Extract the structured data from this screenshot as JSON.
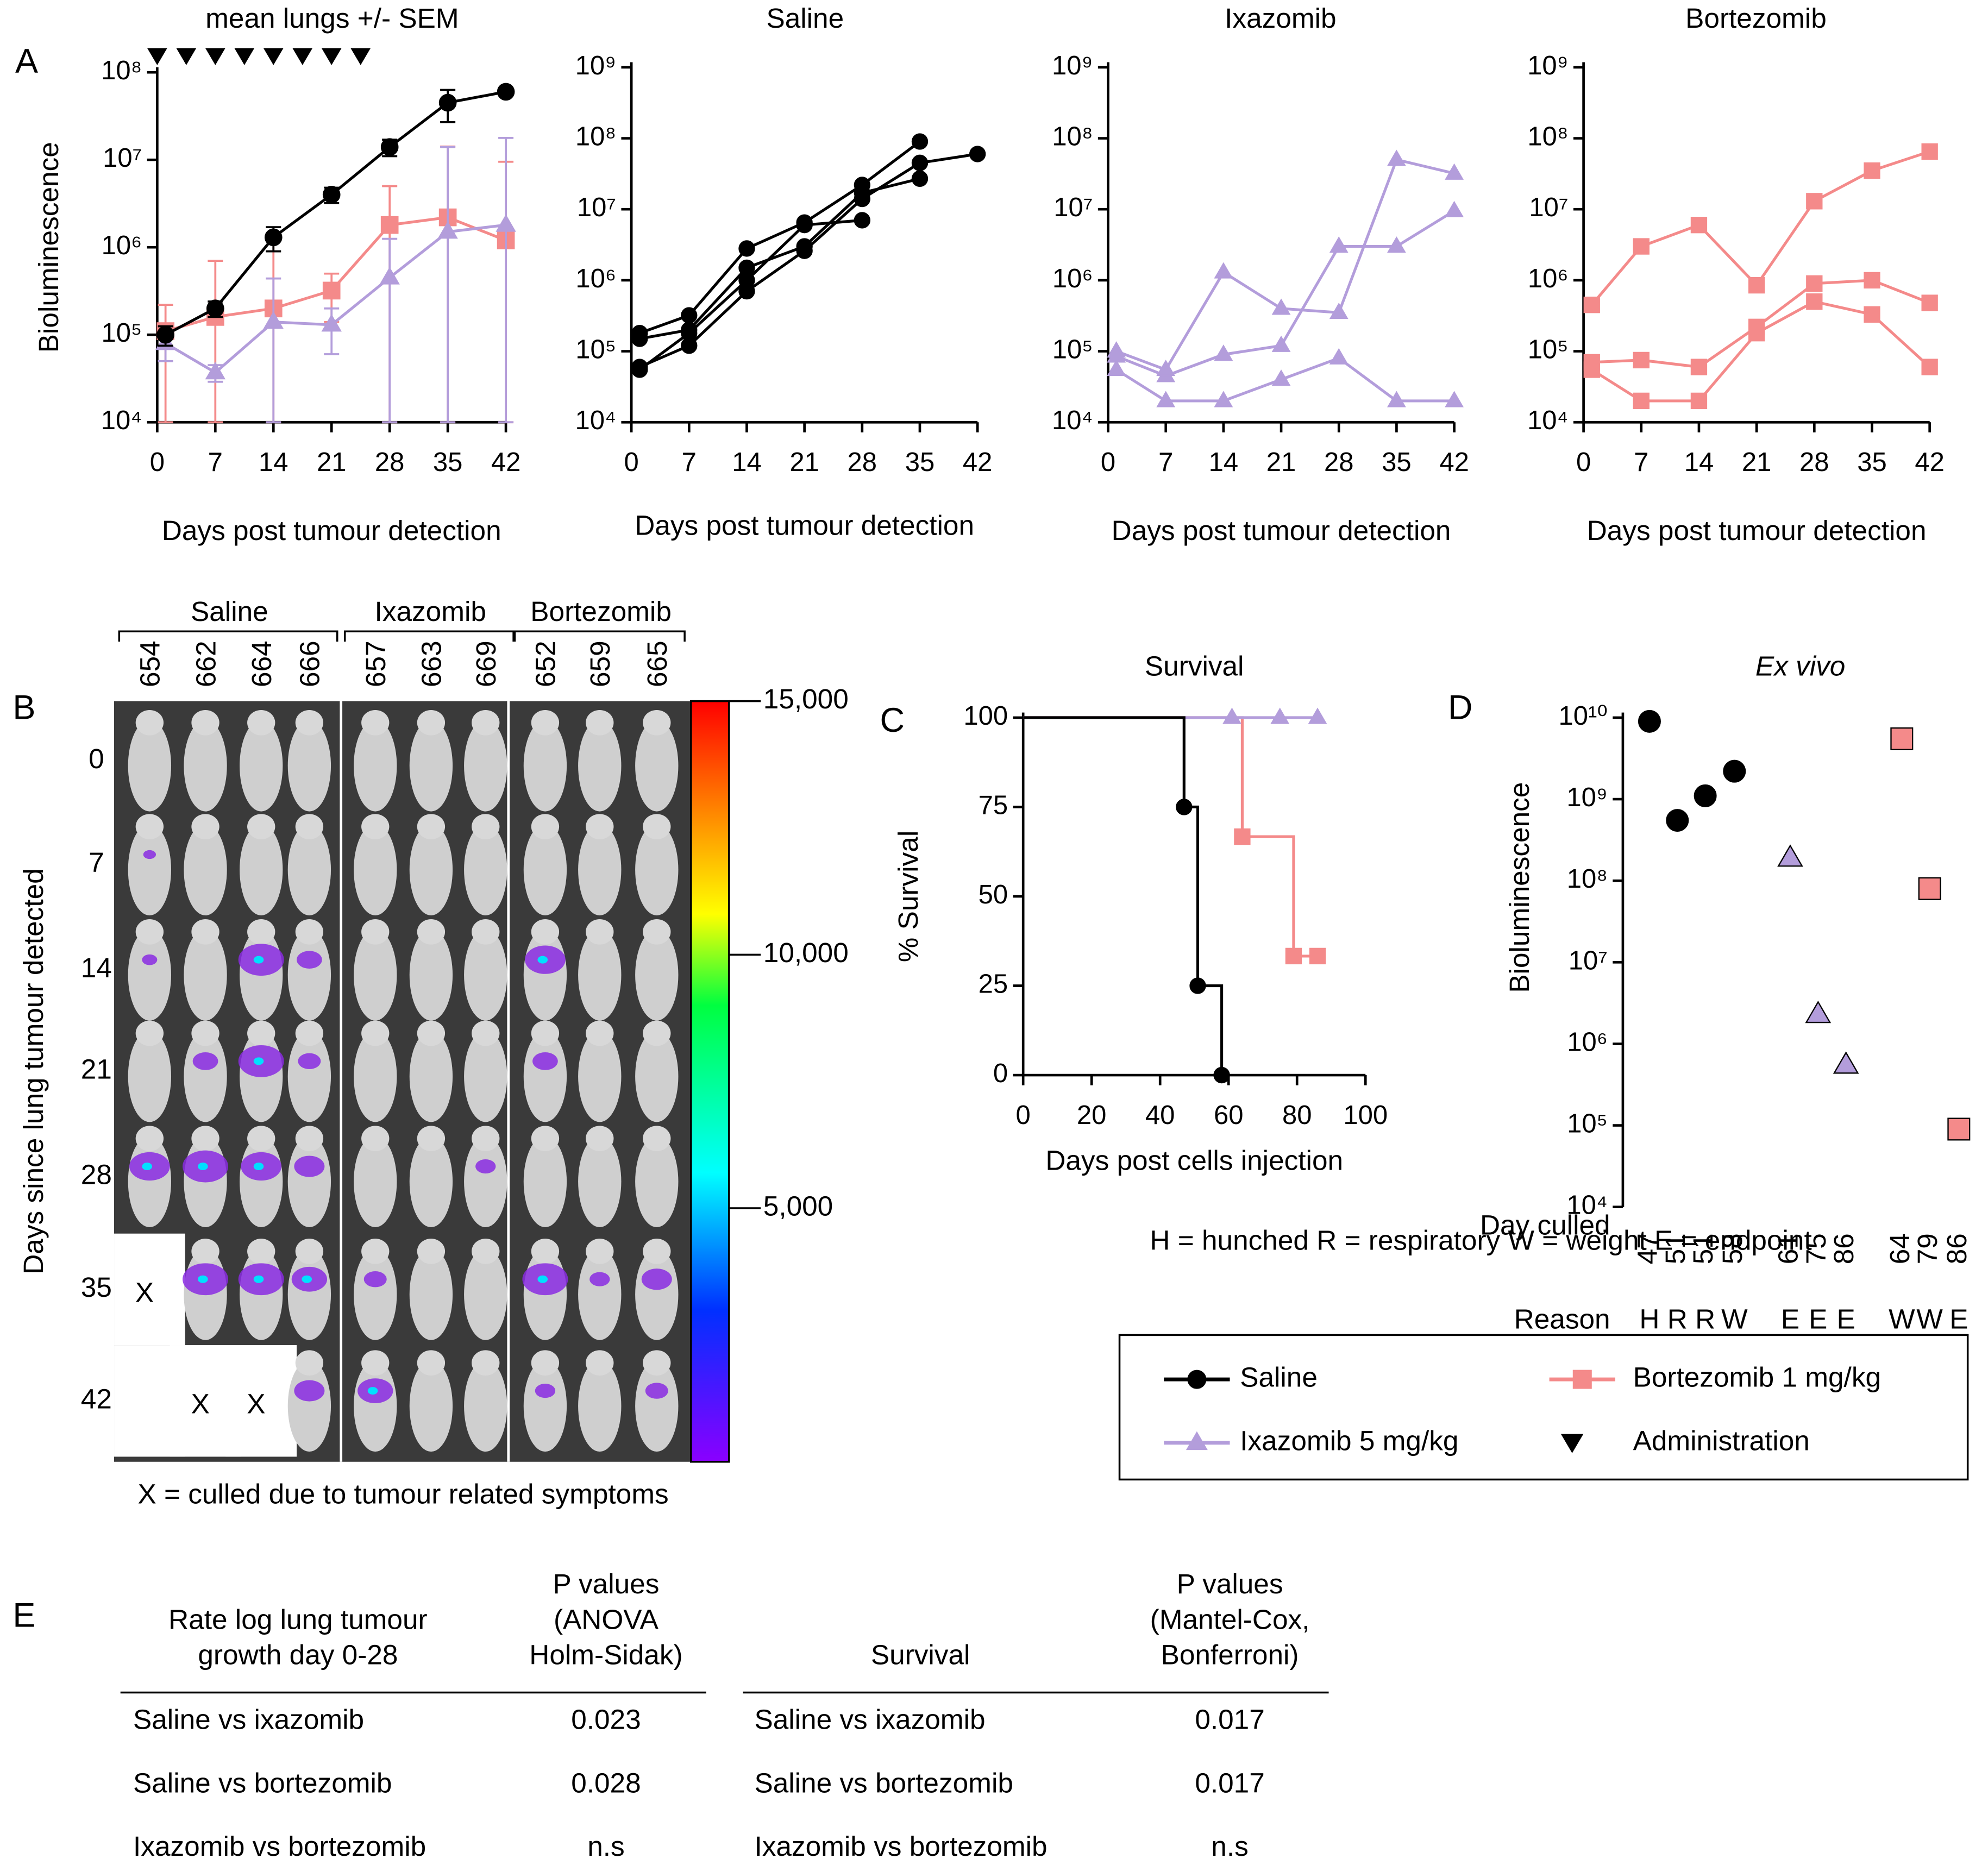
{
  "panel_labels": [
    "A",
    "B",
    "C",
    "D",
    "E"
  ],
  "chart_data": [
    {
      "type": "line",
      "title": "mean lungs +/- SEM",
      "ylabel": "Bioluminescence",
      "xlabel": "Days post tumour detection",
      "log_y": true,
      "x": [
        1,
        7,
        14,
        21,
        28,
        35,
        42
      ],
      "xlim": [
        0,
        42
      ],
      "xticks": [
        0,
        7,
        14,
        21,
        28,
        35,
        42
      ],
      "ylim": [
        10000,
        100000000
      ],
      "yticks": [
        {
          "value": 10000,
          "label": "10⁴"
        },
        {
          "value": 100000,
          "label": "10⁵"
        },
        {
          "value": 1000000,
          "label": "10⁶"
        },
        {
          "value": 10000000,
          "label": "10⁷"
        },
        {
          "value": 100000000,
          "label": "10⁸"
        }
      ],
      "series": [
        {
          "name": "Saline",
          "color": "#000000",
          "marker": "circle",
          "values": [
            100000,
            200000,
            1300000,
            4000000,
            14000000,
            45000000,
            60000000
          ],
          "errors": [
            25000,
            40000,
            400000,
            800000,
            3000000,
            18000000,
            3000000
          ]
        },
        {
          "name": "Ixazomib 5 mg/kg",
          "color": "#b39ddb",
          "marker": "triangle",
          "values": [
            80000,
            37000,
            140000,
            130000,
            450000,
            1500000,
            1800000
          ],
          "errors": [
            30000,
            8000,
            300000,
            70000,
            800000,
            12500000,
            16000000
          ]
        },
        {
          "name": "Bortezomib 1 mg/kg",
          "color": "#f48a8a",
          "marker": "square",
          "values": [
            110000,
            160000,
            200000,
            320000,
            1800000,
            2200000,
            1200000
          ],
          "errors": [
            110000,
            540000,
            1200000,
            180000,
            3200000,
            12000000,
            8300000
          ]
        }
      ],
      "administration_days": [
        0,
        3.5,
        7,
        10.5,
        14,
        17.5,
        21,
        24.5
      ],
      "administration_label": "Administration"
    },
    {
      "type": "line",
      "title": "Saline",
      "xlabel": "Days post tumour detection",
      "log_y": true,
      "x": [
        1,
        7,
        14,
        21,
        28,
        35,
        42
      ],
      "xlim": [
        0,
        42
      ],
      "xticks": [
        0,
        7,
        14,
        21,
        28,
        35,
        42
      ],
      "ylim": [
        10000,
        1000000000
      ],
      "yticks": [
        {
          "value": 10000,
          "label": "10⁴"
        },
        {
          "value": 100000,
          "label": "10⁵"
        },
        {
          "value": 1000000,
          "label": "10⁶"
        },
        {
          "value": 10000000,
          "label": "10⁷"
        },
        {
          "value": 100000000,
          "label": "10⁸"
        },
        {
          "value": 1000000000,
          "label": "10⁹"
        }
      ],
      "series": [
        {
          "color": "#000000",
          "marker": "circle",
          "values": [
            180000,
            320000,
            2800000,
            6500000,
            22000000,
            90000000,
            null
          ]
        },
        {
          "color": "#000000",
          "marker": "circle",
          "values": [
            60000,
            120000,
            700000,
            2600000,
            14000000,
            45000000,
            60000000
          ]
        },
        {
          "color": "#000000",
          "marker": "circle",
          "values": [
            150000,
            200000,
            1500000,
            3000000,
            17000000,
            27000000,
            null
          ]
        },
        {
          "color": "#000000",
          "marker": "circle",
          "values": [
            55000,
            180000,
            1000000,
            6000000,
            7000000,
            null,
            null
          ]
        }
      ]
    },
    {
      "type": "line",
      "title": "Ixazomib",
      "xlabel": "Days post tumour detection",
      "log_y": true,
      "x": [
        1,
        7,
        14,
        21,
        28,
        35,
        42
      ],
      "xlim": [
        0,
        42
      ],
      "xticks": [
        0,
        7,
        14,
        21,
        28,
        35,
        42
      ],
      "ylim": [
        10000,
        1000000000
      ],
      "yticks": [
        {
          "value": 10000,
          "label": "10⁴"
        },
        {
          "value": 100000,
          "label": "10⁵"
        },
        {
          "value": 1000000,
          "label": "10⁶"
        },
        {
          "value": 10000000,
          "label": "10⁷"
        },
        {
          "value": 100000000,
          "label": "10⁸"
        },
        {
          "value": 1000000000,
          "label": "10⁹"
        }
      ],
      "series": [
        {
          "color": "#b39ddb",
          "marker": "triangle",
          "values": [
            100000,
            55000,
            1300000,
            400000,
            350000,
            50000000,
            32000000
          ]
        },
        {
          "color": "#b39ddb",
          "marker": "triangle",
          "values": [
            85000,
            45000,
            90000,
            120000,
            3000000,
            3000000,
            9500000
          ]
        },
        {
          "color": "#b39ddb",
          "marker": "triangle",
          "values": [
            55000,
            20000,
            20000,
            40000,
            80000,
            20000,
            20000
          ]
        }
      ]
    },
    {
      "type": "line",
      "title": "Bortezomib",
      "xlabel": "Days post tumour detection",
      "log_y": true,
      "x": [
        1,
        7,
        14,
        21,
        28,
        35,
        42
      ],
      "xlim": [
        0,
        42
      ],
      "xticks": [
        0,
        7,
        14,
        21,
        28,
        35,
        42
      ],
      "ylim": [
        10000,
        1000000000
      ],
      "yticks": [
        {
          "value": 10000,
          "label": "10⁴"
        },
        {
          "value": 100000,
          "label": "10⁵"
        },
        {
          "value": 1000000,
          "label": "10⁶"
        },
        {
          "value": 10000000,
          "label": "10⁷"
        },
        {
          "value": 100000000,
          "label": "10⁸"
        },
        {
          "value": 1000000000,
          "label": "10⁹"
        }
      ],
      "series": [
        {
          "color": "#f48a8a",
          "marker": "square",
          "values": [
            450000,
            3000000,
            6000000,
            850000,
            13000000,
            35000000,
            65000000
          ]
        },
        {
          "color": "#f48a8a",
          "marker": "square",
          "values": [
            70000,
            75000,
            60000,
            220000,
            900000,
            1000000,
            480000
          ]
        },
        {
          "color": "#f48a8a",
          "marker": "square",
          "values": [
            55000,
            20000,
            20000,
            180000,
            500000,
            330000,
            60000
          ]
        }
      ]
    },
    {
      "type": "step",
      "title": "Survival",
      "ylabel": "% Survival",
      "xlabel": "Days post cells injection",
      "xlim": [
        0,
        100
      ],
      "xticks": [
        0,
        20,
        40,
        60,
        80,
        100
      ],
      "ylim": [
        0,
        100
      ],
      "yticks": [
        0,
        25,
        50,
        75,
        100
      ],
      "series": [
        {
          "color": "#f48a8a",
          "marker": "square",
          "x": [
            0,
            64,
            79,
            86
          ],
          "values": [
            100,
            66.7,
            33.3,
            33.3
          ]
        },
        {
          "color": "#b39ddb",
          "marker": "triangle",
          "x": [
            0,
            61,
            75,
            86
          ],
          "values": [
            100,
            100,
            100,
            100
          ]
        },
        {
          "color": "#000000",
          "marker": "circle",
          "x": [
            0,
            47,
            51,
            58
          ],
          "values": [
            100,
            75,
            25,
            0
          ]
        }
      ]
    },
    {
      "type": "scatter",
      "title": "Ex vivo",
      "ylabel": "Bioluminescence",
      "log_y": true,
      "row_labels": [
        "Day culled",
        "Reason"
      ],
      "categories": [
        "47",
        "51",
        "51",
        "58",
        "61",
        "75",
        "86",
        "64",
        "79",
        "86"
      ],
      "reasons": [
        "H",
        "R",
        "R",
        "W",
        "E",
        "E",
        "E",
        "W",
        "W",
        "E"
      ],
      "ylim": [
        10000,
        10000000000
      ],
      "yticks": [
        {
          "value": 10000,
          "label": "10⁴"
        },
        {
          "value": 100000,
          "label": "10⁵"
        },
        {
          "value": 1000000,
          "label": "10⁶"
        },
        {
          "value": 10000000,
          "label": "10⁷"
        },
        {
          "value": 100000000,
          "label": "10⁸"
        },
        {
          "value": 1000000000,
          "label": "10⁹"
        },
        {
          "value": 10000000000,
          "label": "10¹⁰"
        }
      ],
      "series": [
        {
          "color": "#000000",
          "marker": "circle",
          "values": [
            9000000000,
            550000000,
            1100000000,
            2200000000,
            null,
            null,
            null,
            null,
            null,
            null
          ]
        },
        {
          "color": "#b39ddb",
          "marker": "triangle",
          "values": [
            null,
            null,
            null,
            null,
            190000000,
            2300000,
            550000,
            null,
            null,
            null
          ]
        },
        {
          "color": "#f48a8a",
          "marker": "square",
          "values": [
            null,
            null,
            null,
            null,
            null,
            null,
            null,
            5500000000,
            80000000,
            90000
          ]
        }
      ]
    }
  ],
  "imaging": {
    "groups": [
      {
        "name": "Saline",
        "mice": [
          "654",
          "662",
          "664",
          "666"
        ]
      },
      {
        "name": "Ixazomib",
        "mice": [
          "657",
          "663",
          "669"
        ]
      },
      {
        "name": "Bortezomib",
        "mice": [
          "652",
          "659",
          "665"
        ]
      }
    ],
    "days": [
      "0",
      "7",
      "14",
      "21",
      "28",
      "35",
      "42"
    ],
    "ylabel": "Days since lung tumour detected",
    "culled": [
      [
        null,
        null,
        null,
        null,
        null,
        null,
        null,
        null,
        null,
        null
      ],
      [
        null,
        null,
        null,
        null,
        null,
        null,
        null,
        null,
        null,
        null
      ],
      [
        null,
        null,
        null,
        null,
        null,
        null,
        null,
        null,
        null,
        null
      ],
      [
        null,
        null,
        null,
        null,
        null,
        null,
        null,
        null,
        null,
        null
      ],
      [
        null,
        null,
        null,
        null,
        null,
        null,
        null,
        null,
        null,
        null
      ],
      [
        "X",
        null,
        null,
        null,
        null,
        null,
        null,
        null,
        null,
        null
      ],
      [
        null,
        "X",
        "X",
        null,
        null,
        null,
        null,
        null,
        null,
        null
      ]
    ],
    "colorbar": {
      "clim": [
        0,
        15000
      ],
      "ticks": [
        {
          "value": 15000,
          "label": "15,000"
        },
        {
          "value": 10000,
          "label": "10,000"
        },
        {
          "value": 5000,
          "label": "5,000"
        }
      ]
    },
    "caption": "X = culled due to tumour related symptoms"
  },
  "reason_key": "H = hunched R = respiratory W = weight E = endpoint",
  "tables": [
    {
      "header": [
        [
          "Rate log lung tumour",
          "growth day 0-28"
        ],
        [
          "P values",
          "(ANOVA",
          "Holm-Sidak)"
        ]
      ],
      "rows": [
        [
          "Saline vs ixazomib",
          "0.023"
        ],
        [
          "Saline vs bortezomib",
          "0.028"
        ],
        [
          "Ixazomib vs bortezomib",
          "n.s"
        ]
      ]
    },
    {
      "header": [
        [
          "Survival"
        ],
        [
          "P values",
          "(Mantel-Cox,",
          "Bonferroni)"
        ]
      ],
      "rows": [
        [
          "Saline vs ixazomib",
          "0.017"
        ],
        [
          "Saline vs bortezomib",
          "0.017"
        ],
        [
          "Ixazomib vs bortezomib",
          "n.s"
        ]
      ]
    }
  ]
}
